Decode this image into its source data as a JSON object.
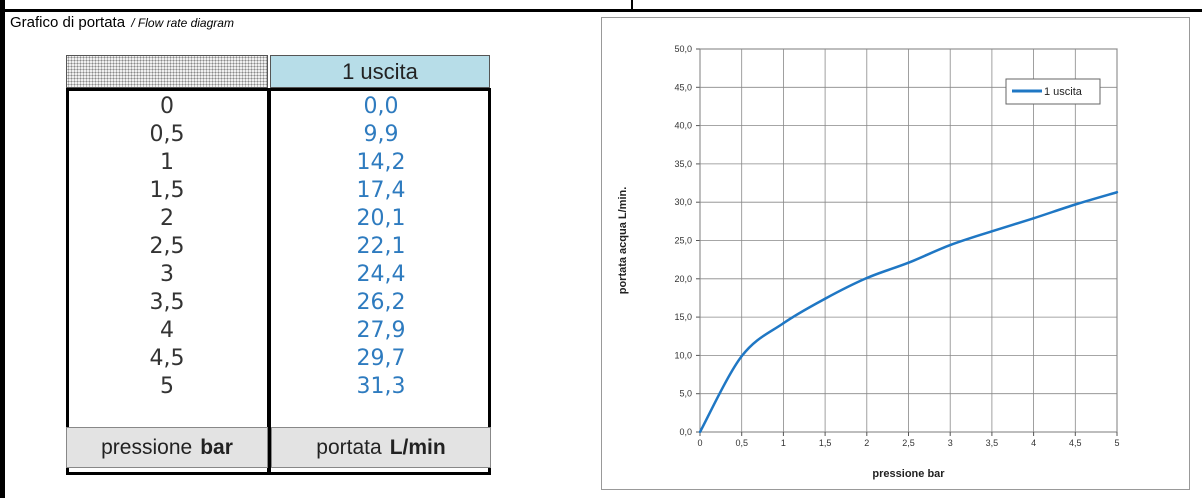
{
  "section": {
    "title": "Grafico di portata",
    "subtitle": "/ Flow rate diagram"
  },
  "table": {
    "header_col": "1 uscita",
    "pressures": [
      "0",
      "0,5",
      "1",
      "1,5",
      "2",
      "2,5",
      "3",
      "3,5",
      "4",
      "4,5",
      "5"
    ],
    "flows": [
      "0,0",
      "9,9",
      "14,2",
      "17,4",
      "20,1",
      "22,1",
      "24,4",
      "26,2",
      "27,9",
      "29,7",
      "31,3"
    ],
    "footer_left": {
      "text": "pressione",
      "unit": "bar"
    },
    "footer_right": {
      "text": "portata",
      "unit": "L/min"
    }
  },
  "chart_data": {
    "type": "line",
    "x": [
      0,
      0.5,
      1,
      1.5,
      2,
      2.5,
      3,
      3.5,
      4,
      4.5,
      5
    ],
    "series": [
      {
        "name": "1 uscita",
        "values": [
          0,
          9.9,
          14.2,
          17.4,
          20.1,
          22.1,
          24.4,
          26.2,
          27.9,
          29.7,
          31.3
        ],
        "color": "#1f77c4"
      }
    ],
    "xlabel": "pressione bar",
    "ylabel": "portata acqua L/min.",
    "xlim": [
      0,
      5
    ],
    "ylim": [
      0,
      50
    ],
    "xticks": [
      "0",
      "0,5",
      "1",
      "1,5",
      "2",
      "2,5",
      "3",
      "3,5",
      "4",
      "4,5",
      "5"
    ],
    "yticks": [
      "0,0",
      "5,0",
      "10,0",
      "15,0",
      "20,0",
      "25,0",
      "30,0",
      "35,0",
      "40,0",
      "45,0",
      "50,0"
    ],
    "grid": true,
    "legend_position": "top-right"
  }
}
